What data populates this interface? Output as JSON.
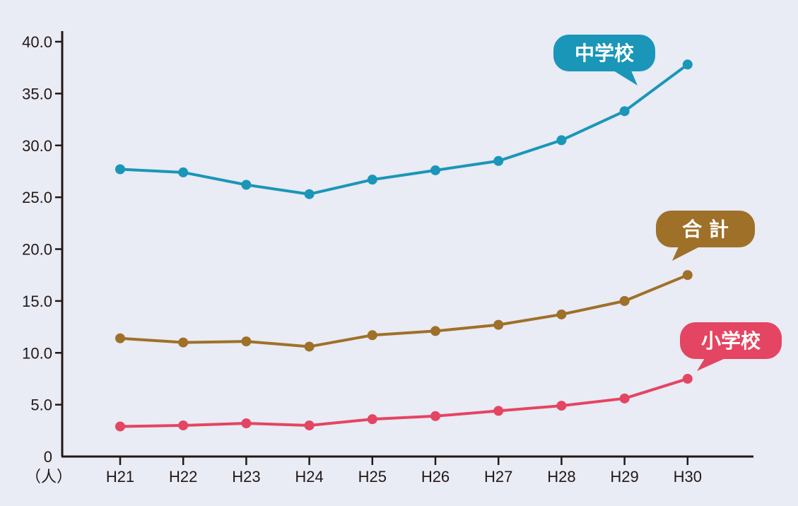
{
  "chart_data": {
    "type": "line",
    "categories": [
      "H21",
      "H22",
      "H23",
      "H24",
      "H25",
      "H26",
      "H27",
      "H28",
      "H29",
      "H30"
    ],
    "y_unit_label": "（人）",
    "y_ticks": [
      "0",
      "5.0",
      "10.0",
      "15.0",
      "20.0",
      "25.0",
      "30.0",
      "35.0",
      "40.0"
    ],
    "ylim": [
      0,
      40
    ],
    "grid": false,
    "series": [
      {
        "name": "中学校",
        "color": "#1a96b8",
        "values": [
          27.7,
          27.4,
          26.2,
          25.3,
          26.7,
          27.6,
          28.5,
          30.5,
          33.3,
          37.8
        ]
      },
      {
        "name": "合 計",
        "color": "#9e7028",
        "values": [
          11.4,
          11.0,
          11.1,
          10.6,
          11.7,
          12.1,
          12.7,
          13.7,
          15.0,
          17.5
        ]
      },
      {
        "name": "小学校",
        "color": "#e44562",
        "values": [
          2.9,
          3.0,
          3.2,
          3.0,
          3.6,
          3.9,
          4.4,
          4.9,
          5.6,
          7.5
        ]
      }
    ]
  }
}
